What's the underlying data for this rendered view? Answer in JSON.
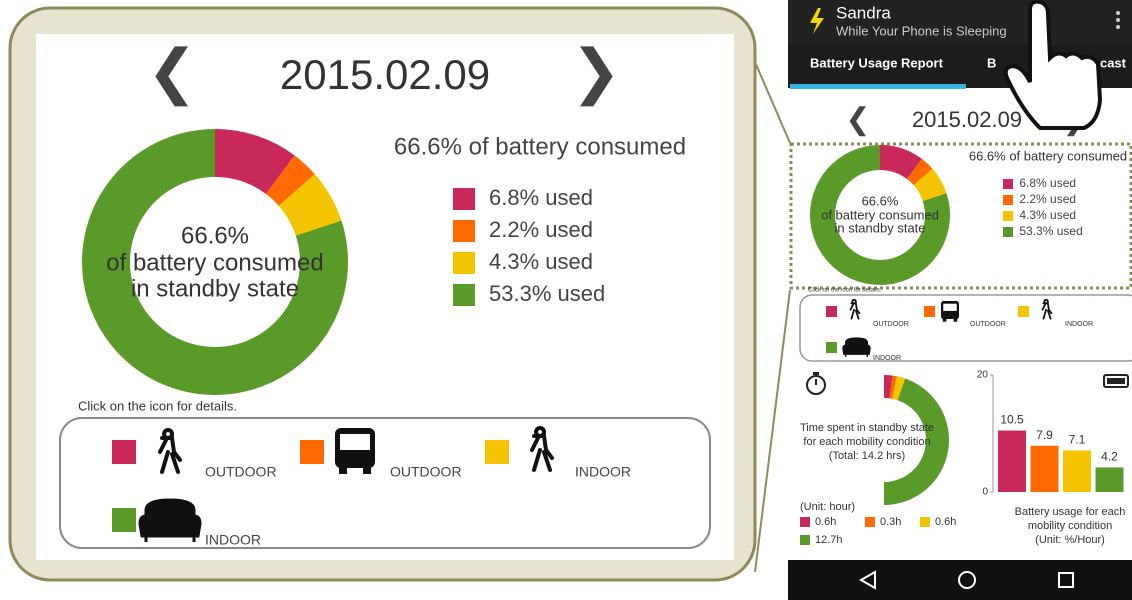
{
  "app": {
    "name": "Sandra",
    "subtitle": "While Your Phone is Sleeping",
    "tabs": [
      "Battery Usage Report",
      "B",
      "cast"
    ]
  },
  "date": "2015.02.09",
  "colors": [
    "#c8285a",
    "#ff6a00",
    "#f5c400",
    "#5a9a28"
  ],
  "consumption_chart": {
    "type": "pie",
    "title": "66.6% of battery consumed",
    "center_label": [
      "66.6%",
      "of battery consumed",
      "in standby state"
    ],
    "values": [
      6.8,
      2.2,
      4.3,
      53.3
    ],
    "value_labels": [
      "6.8% used",
      "2.2% used",
      "4.3% used",
      "53.3% used"
    ]
  },
  "hint": "Click on the icon for details.",
  "mobility": [
    "OUTDOOR",
    "OUTDOOR",
    "INDOOR",
    "INDOOR"
  ],
  "time_chart": {
    "type": "pie",
    "title": [
      "Time spent in standby state",
      "for each mobility condition",
      "(Total: 14.2 hrs)"
    ],
    "unit": "(Unit: hour)",
    "values": [
      0.6,
      0.3,
      0.6,
      12.7
    ],
    "value_labels": [
      "0.6h",
      "0.3h",
      "0.6h",
      "12.7h"
    ]
  },
  "usage_chart": {
    "type": "bar",
    "values": [
      10.5,
      7.9,
      7.1,
      4.2
    ],
    "ylim": [
      0,
      20
    ],
    "yticks": [
      0,
      20
    ],
    "caption": [
      "Battery usage for each",
      "mobility condition",
      "(Unit: %/Hour)"
    ]
  }
}
